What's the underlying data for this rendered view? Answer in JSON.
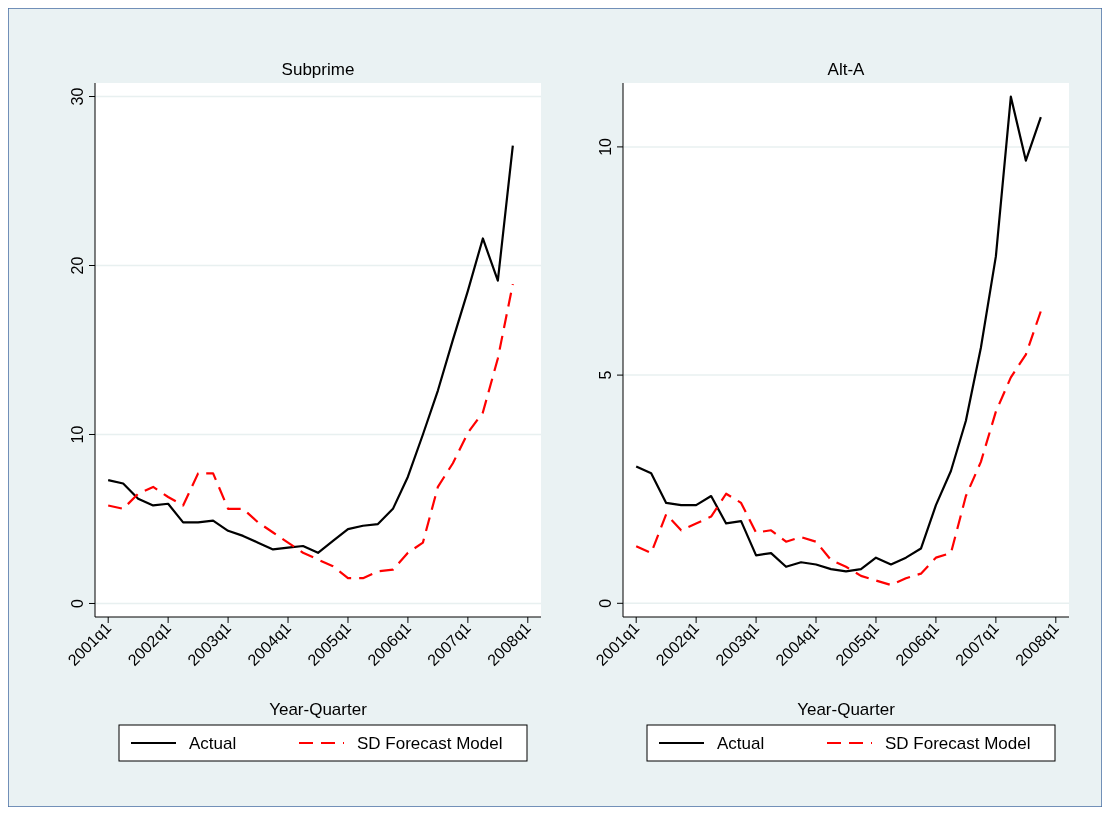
{
  "chart_data": [
    {
      "type": "line",
      "title": "Subprime",
      "xlabel": "Year-Quarter",
      "categories": [
        "2001q1",
        null,
        null,
        null,
        "2002q1",
        null,
        null,
        null,
        "2003q1",
        null,
        null,
        null,
        "2004q1",
        null,
        null,
        null,
        "2005q1",
        null,
        null,
        null,
        "2006q1",
        null,
        null,
        null,
        "2007q1",
        null,
        null,
        null,
        "2008q1"
      ],
      "series": [
        {
          "name": "Actual",
          "color": "#000000",
          "line_style": "solid",
          "values": [
            7.3,
            7.1,
            6.2,
            5.8,
            5.9,
            4.8,
            4.8,
            4.9,
            4.3,
            4.0,
            3.6,
            3.2,
            3.3,
            3.4,
            3.0,
            3.7,
            4.4,
            4.6,
            4.7,
            5.6,
            7.5,
            10.0,
            12.6,
            15.6,
            18.5,
            21.6,
            19.1,
            27.1,
            null
          ]
        },
        {
          "name": "SD Forecast Model",
          "color": "#ff0000",
          "line_style": "dashed",
          "values": [
            5.8,
            5.6,
            6.5,
            6.9,
            6.3,
            5.8,
            7.7,
            7.7,
            5.6,
            5.6,
            4.8,
            4.2,
            3.6,
            3.0,
            2.6,
            2.2,
            1.5,
            1.5,
            1.9,
            2.0,
            3.0,
            3.6,
            6.9,
            8.3,
            10.1,
            11.3,
            14.5,
            18.9,
            null
          ]
        }
      ],
      "ylim": [
        -0.8,
        30.8
      ],
      "yticks": [
        0,
        10,
        20,
        30
      ],
      "grid": "y",
      "legend": "bottom"
    },
    {
      "type": "line",
      "title": "Alt-A",
      "xlabel": "Year-Quarter",
      "categories": [
        "2001q1",
        null,
        null,
        null,
        "2002q1",
        null,
        null,
        null,
        "2003q1",
        null,
        null,
        null,
        "2004q1",
        null,
        null,
        null,
        "2005q1",
        null,
        null,
        null,
        "2006q1",
        null,
        null,
        null,
        "2007q1",
        null,
        null,
        null,
        "2008q1"
      ],
      "series": [
        {
          "name": "Actual",
          "color": "#000000",
          "line_style": "solid",
          "values": [
            3.0,
            2.85,
            2.2,
            2.15,
            2.15,
            2.35,
            1.75,
            1.8,
            1.05,
            1.1,
            0.8,
            0.9,
            0.85,
            0.75,
            0.7,
            0.75,
            1.0,
            0.85,
            1.0,
            1.2,
            2.15,
            2.9,
            4.0,
            5.6,
            7.6,
            11.1,
            9.7,
            10.65,
            null
          ]
        },
        {
          "name": "SD Forecast Model",
          "color": "#ff0000",
          "line_style": "dashed",
          "values": [
            1.25,
            1.1,
            1.95,
            1.6,
            1.75,
            1.9,
            2.4,
            2.2,
            1.55,
            1.6,
            1.35,
            1.45,
            1.35,
            0.95,
            0.8,
            0.6,
            0.5,
            0.4,
            0.55,
            0.65,
            1.0,
            1.1,
            2.35,
            3.1,
            4.2,
            4.95,
            5.45,
            6.4,
            null
          ]
        }
      ],
      "ylim": [
        -0.3,
        11.4
      ],
      "yticks": [
        0,
        5,
        10
      ],
      "grid": "y",
      "legend": "bottom"
    }
  ]
}
